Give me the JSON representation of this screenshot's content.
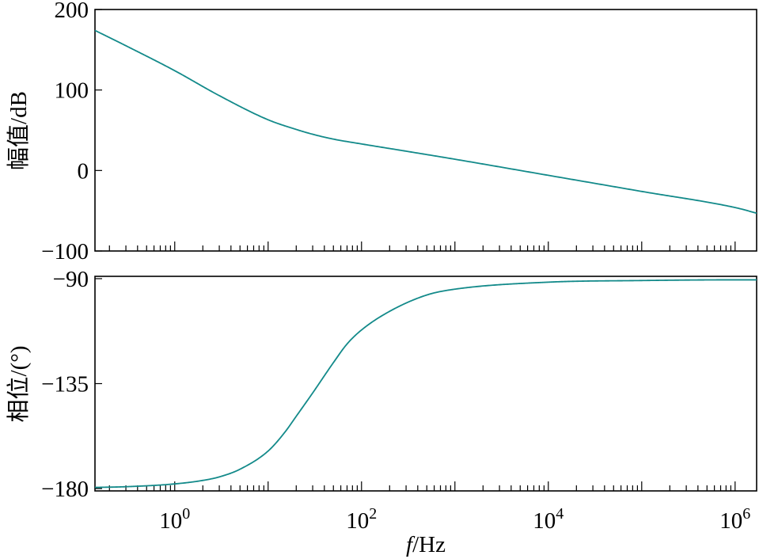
{
  "chart_data": [
    {
      "type": "line",
      "name": "magnitude",
      "xscale": "log",
      "xlim": [
        0.14,
        1700000
      ],
      "ylim": [
        -100,
        200
      ],
      "ylabel": "幅值/dB",
      "yticks": [
        {
          "value": -100,
          "label": "−100"
        },
        {
          "value": 0,
          "label": "0"
        },
        {
          "value": 100,
          "label": "100"
        },
        {
          "value": 200,
          "label": "200"
        }
      ],
      "color": "#138a8a",
      "x": [
        0.14,
        0.3,
        1,
        3,
        10,
        20,
        30,
        50,
        100,
        300,
        1000,
        10000,
        100000,
        1000000,
        1700000
      ],
      "y": [
        174,
        155,
        124,
        93,
        63,
        51,
        45,
        39,
        33,
        24,
        14,
        -6,
        -26,
        -46,
        -53
      ]
    },
    {
      "type": "line",
      "name": "phase",
      "xscale": "log",
      "xlim": [
        0.14,
        1700000
      ],
      "ylim": [
        -181,
        -89
      ],
      "ylabel": "相位/(°)",
      "yticks": [
        {
          "value": -180,
          "label": "−180"
        },
        {
          "value": -135,
          "label": "−135"
        },
        {
          "value": -90,
          "label": "−90"
        }
      ],
      "color": "#138a8a",
      "x": [
        0.14,
        0.3,
        1,
        2,
        3,
        5,
        10,
        15,
        20,
        30,
        50,
        70,
        100,
        200,
        500,
        1000,
        10000,
        100000,
        1000000,
        1700000
      ],
      "y": [
        -179.5,
        -179.2,
        -178,
        -176.5,
        -175,
        -171.7,
        -163.9,
        -156,
        -149,
        -139,
        -126,
        -118,
        -112,
        -104,
        -97,
        -94.5,
        -91.5,
        -90.8,
        -90.5,
        -90.5
      ]
    }
  ],
  "x_axis": {
    "label_italic": "f",
    "label_unit": "/Hz",
    "ticks": [
      {
        "value": 1,
        "base": "10",
        "exp": "0"
      },
      {
        "value": 100,
        "base": "10",
        "exp": "2"
      },
      {
        "value": 10000,
        "base": "10",
        "exp": "4"
      },
      {
        "value": 1000000,
        "base": "10",
        "exp": "6"
      }
    ]
  }
}
